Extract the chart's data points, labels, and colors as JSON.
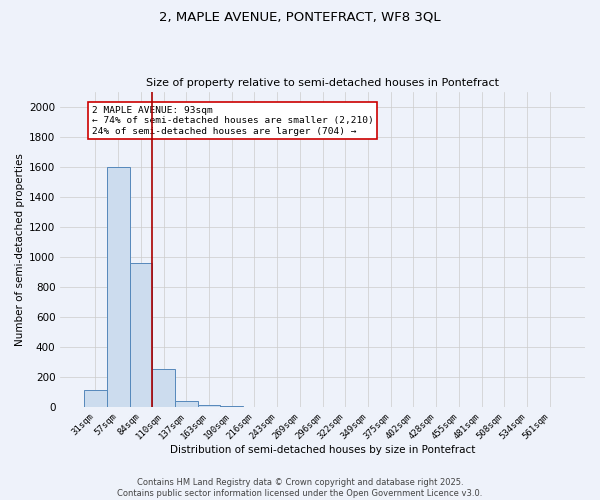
{
  "title_line1": "2, MAPLE AVENUE, PONTEFRACT, WF8 3QL",
  "title_line2": "Size of property relative to semi-detached houses in Pontefract",
  "xlabel": "Distribution of semi-detached houses by size in Pontefract",
  "ylabel": "Number of semi-detached properties",
  "categories": [
    "31sqm",
    "57sqm",
    "84sqm",
    "110sqm",
    "137sqm",
    "163sqm",
    "190sqm",
    "216sqm",
    "243sqm",
    "269sqm",
    "296sqm",
    "322sqm",
    "349sqm",
    "375sqm",
    "402sqm",
    "428sqm",
    "455sqm",
    "481sqm",
    "508sqm",
    "534sqm",
    "561sqm"
  ],
  "values": [
    110,
    1600,
    960,
    255,
    38,
    14,
    8,
    0,
    0,
    0,
    0,
    0,
    0,
    0,
    0,
    0,
    0,
    0,
    0,
    0,
    0
  ],
  "bar_color": "#ccdcee",
  "bar_edge_color": "#5588bb",
  "property_line_x": 2.5,
  "property_line_color": "#aa0000",
  "annotation_text": "2 MAPLE AVENUE: 93sqm\n← 74% of semi-detached houses are smaller (2,210)\n24% of semi-detached houses are larger (704) →",
  "annotation_box_color": "#ffffff",
  "annotation_box_edge": "#cc0000",
  "ylim": [
    0,
    2100
  ],
  "yticks": [
    0,
    200,
    400,
    600,
    800,
    1000,
    1200,
    1400,
    1600,
    1800,
    2000
  ],
  "footer_line1": "Contains HM Land Registry data © Crown copyright and database right 2025.",
  "footer_line2": "Contains public sector information licensed under the Open Government Licence v3.0.",
  "background_color": "#eef2fa",
  "grid_color": "#cccccc"
}
